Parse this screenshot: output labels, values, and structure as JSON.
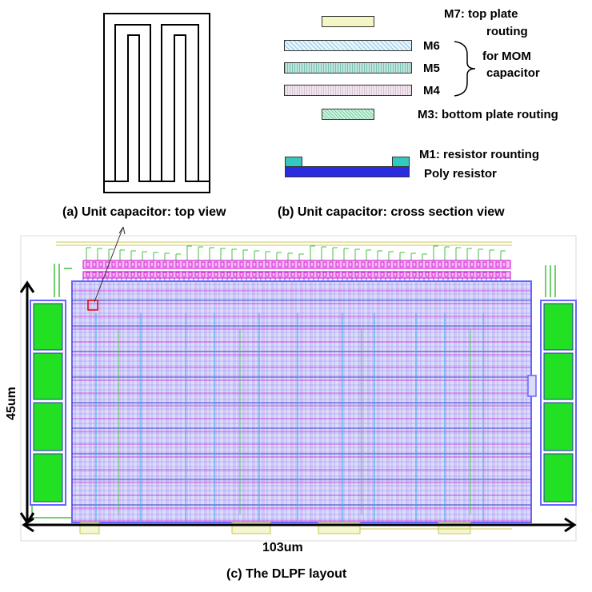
{
  "panel_a": {
    "caption": "(a) Unit capacitor: top view"
  },
  "panel_b": {
    "caption": "(b) Unit capacitor: cross section view",
    "labels": {
      "m7": "M7: top plate",
      "m7_cont": "routing",
      "m6": "M6",
      "m5": "M5",
      "m4": "M4",
      "mom": "for MOM",
      "mom_cont": "capacitor",
      "m3": "M3: bottom plate routing",
      "m1": "M1: resistor rounting",
      "poly": "Poly resistor"
    },
    "colors": {
      "m7": "#f3f6c2",
      "m6": "#b9e6ee",
      "m5": "#a9d8d0",
      "m4": "#ecdde8",
      "m3": "#b8ead0",
      "m1": "#33c9c2",
      "poly": "#2b2be0"
    }
  },
  "panel_c": {
    "caption": "(c) The DLPF layout",
    "height_label": "45um",
    "width_label": "103um",
    "colors": {
      "array_border": "#6464ff",
      "grid_blue": "#5a5af0",
      "grid_magenta": "#d000d0",
      "grid_green": "#40c040",
      "resistor_green": "#22e022",
      "highlight": "#e00000"
    }
  }
}
